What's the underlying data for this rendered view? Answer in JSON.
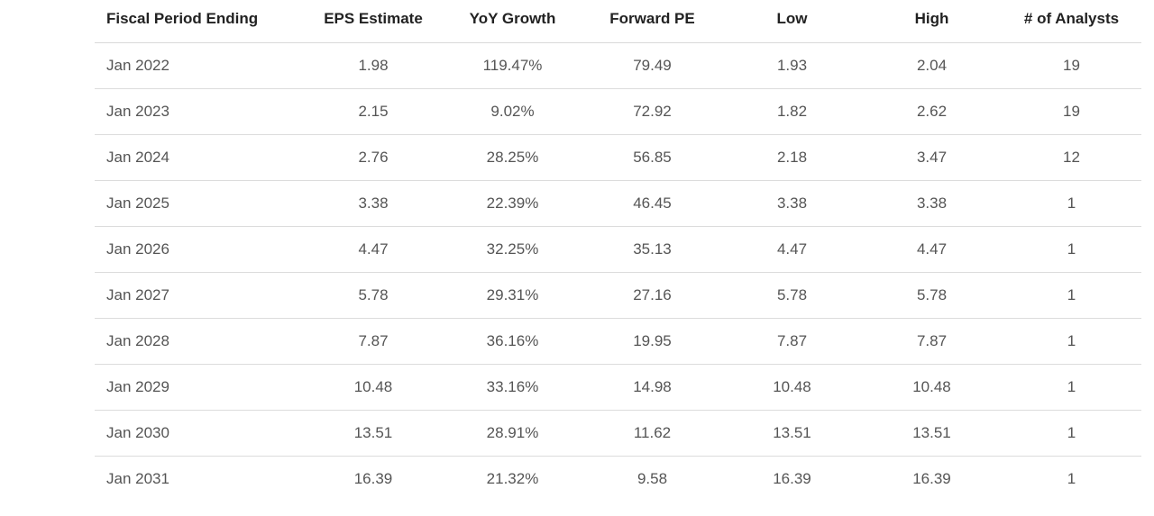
{
  "table": {
    "headers": [
      "Fiscal Period Ending",
      "EPS Estimate",
      "YoY Growth",
      "Forward PE",
      "Low",
      "High",
      "# of Analysts"
    ],
    "rows": [
      [
        "Jan 2022",
        "1.98",
        "119.47%",
        "79.49",
        "1.93",
        "2.04",
        "19"
      ],
      [
        "Jan 2023",
        "2.15",
        "9.02%",
        "72.92",
        "1.82",
        "2.62",
        "19"
      ],
      [
        "Jan 2024",
        "2.76",
        "28.25%",
        "56.85",
        "2.18",
        "3.47",
        "12"
      ],
      [
        "Jan 2025",
        "3.38",
        "22.39%",
        "46.45",
        "3.38",
        "3.38",
        "1"
      ],
      [
        "Jan 2026",
        "4.47",
        "32.25%",
        "35.13",
        "4.47",
        "4.47",
        "1"
      ],
      [
        "Jan 2027",
        "5.78",
        "29.31%",
        "27.16",
        "5.78",
        "5.78",
        "1"
      ],
      [
        "Jan 2028",
        "7.87",
        "36.16%",
        "19.95",
        "7.87",
        "7.87",
        "1"
      ],
      [
        "Jan 2029",
        "10.48",
        "33.16%",
        "14.98",
        "10.48",
        "10.48",
        "1"
      ],
      [
        "Jan 2030",
        "13.51",
        "28.91%",
        "11.62",
        "13.51",
        "13.51",
        "1"
      ],
      [
        "Jan 2031",
        "16.39",
        "21.32%",
        "9.58",
        "16.39",
        "16.39",
        "1"
      ]
    ]
  }
}
